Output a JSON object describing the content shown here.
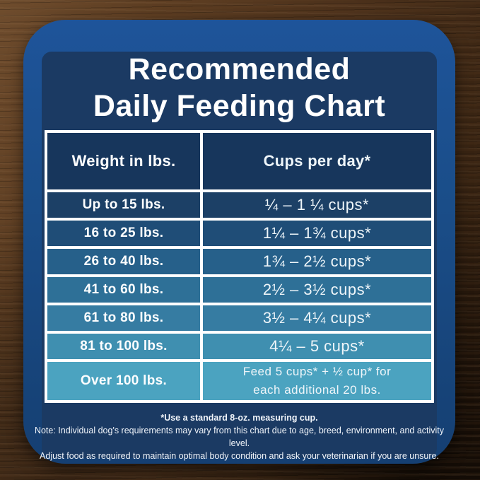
{
  "page": {
    "title_line1": "Recommended",
    "title_line2": "Daily Feeding Chart"
  },
  "colors": {
    "card_blue_top": "#1e549a",
    "card_blue_bottom": "#153f72",
    "panel_navy": "#1b3a63",
    "table_border": "#ffffff",
    "header_row": "#17365c",
    "text": "#ffffff",
    "wood_light": "#6e4c2d",
    "wood_dark": "#23150a"
  },
  "chart_data": {
    "type": "table",
    "title": "Recommended Daily Feeding Chart",
    "columns": [
      "Weight in lbs.",
      "Cups per day*"
    ],
    "header_color": "#17365c",
    "rows": [
      {
        "weight": "Up to 15 lbs.",
        "cups": "¼ – 1 ¼ cups*",
        "color": "#1c4066"
      },
      {
        "weight": "16 to 25 lbs.",
        "cups": "1¼ – 1¾  cups*",
        "color": "#1f4d77"
      },
      {
        "weight": "26 to 40 lbs.",
        "cups": "1¾ – 2½ cups*",
        "color": "#26608a"
      },
      {
        "weight": "41 to 60 lbs.",
        "cups": "2½ – 3½ cups*",
        "color": "#2e7097"
      },
      {
        "weight": "61 to 80 lbs.",
        "cups": "3½ – 4¼ cups*",
        "color": "#367ca2"
      },
      {
        "weight": "81 to 100 lbs.",
        "cups": "4¼ – 5 cups*",
        "color": "#3f8fb0"
      },
      {
        "weight": "Over 100 lbs.",
        "cups": "Feed 5 cups* + ½ cup* for\neach additional 20 lbs.",
        "color": "#4ba3c0"
      }
    ]
  },
  "notes": {
    "measuring": "*Use a standard 8-oz. measuring cup.",
    "disclaimer1": "Note: Individual dog's requirements may vary from this chart due to age, breed, environment, and activity level.",
    "disclaimer2": "Adjust food as required to maintain optimal body condition and ask your veterinarian if you are unsure."
  }
}
